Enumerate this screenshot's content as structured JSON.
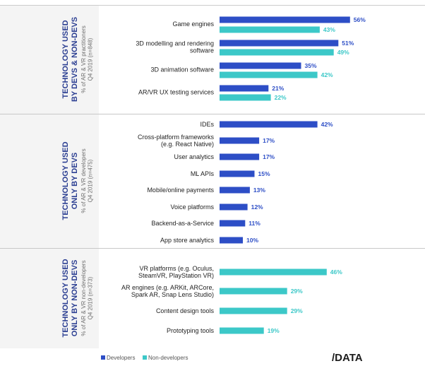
{
  "colors": {
    "developers": "#2d4ec6",
    "non_developers": "#3cc8c8",
    "panel": "#f4f4f4",
    "title": "#2c3f92"
  },
  "legend": {
    "developers": "Developers",
    "non_developers": "Non-developers"
  },
  "logo": "/DATA",
  "chart_data": [
    {
      "type": "bar",
      "orientation": "horizontal",
      "title": [
        "TECHNOLOGY USED",
        "BY DEVS & NON-DEVS"
      ],
      "subtitle": [
        "% of AR & VR practitioners",
        "Q4 2019 (n=848)"
      ],
      "categories": [
        [
          "Game engines"
        ],
        [
          "3D modelling and rendering",
          "software"
        ],
        [
          "3D animation software"
        ],
        [
          "AR/VR UX testing services"
        ]
      ],
      "series": [
        {
          "name": "Developers",
          "key": "developers",
          "values": [
            56,
            51,
            35,
            21
          ]
        },
        {
          "name": "Non-developers",
          "key": "non_developers",
          "values": [
            43,
            49,
            42,
            22
          ]
        }
      ]
    },
    {
      "type": "bar",
      "orientation": "horizontal",
      "title": [
        "TECHNOLOGY USED",
        "ONLY BY DEVS"
      ],
      "subtitle": [
        "% of AR & VR developers",
        "Q4 2019 (n=475)"
      ],
      "categories": [
        [
          "IDEs"
        ],
        [
          "Cross-platform frameworks",
          "(e.g. React Native)"
        ],
        [
          "User analytics"
        ],
        [
          "ML APIs"
        ],
        [
          "Mobile/online payments"
        ],
        [
          "Voice platforms"
        ],
        [
          "Backend-as-a-Service"
        ],
        [
          "App store analytics"
        ]
      ],
      "series": [
        {
          "name": "Developers",
          "key": "developers",
          "values": [
            42,
            17,
            17,
            15,
            13,
            12,
            11,
            10
          ]
        }
      ]
    },
    {
      "type": "bar",
      "orientation": "horizontal",
      "title": [
        "TECHNOLOGY USED",
        "ONLY BY NON-DEVS"
      ],
      "subtitle": [
        "% of AR & VR non-developers",
        "Q4 2019 (n=373)"
      ],
      "categories": [
        [
          "VR platforms (e.g. Oculus,",
          "SteamVR, PlayStation VR)"
        ],
        [
          "AR engines (e.g. ARKit, ARCore,",
          "Spark AR, Snap Lens Studio)"
        ],
        [
          "Content design tools"
        ],
        [
          "Prototyping tools"
        ]
      ],
      "series": [
        {
          "name": "Non-developers",
          "key": "non_developers",
          "values": [
            46,
            29,
            29,
            19
          ]
        }
      ]
    }
  ]
}
